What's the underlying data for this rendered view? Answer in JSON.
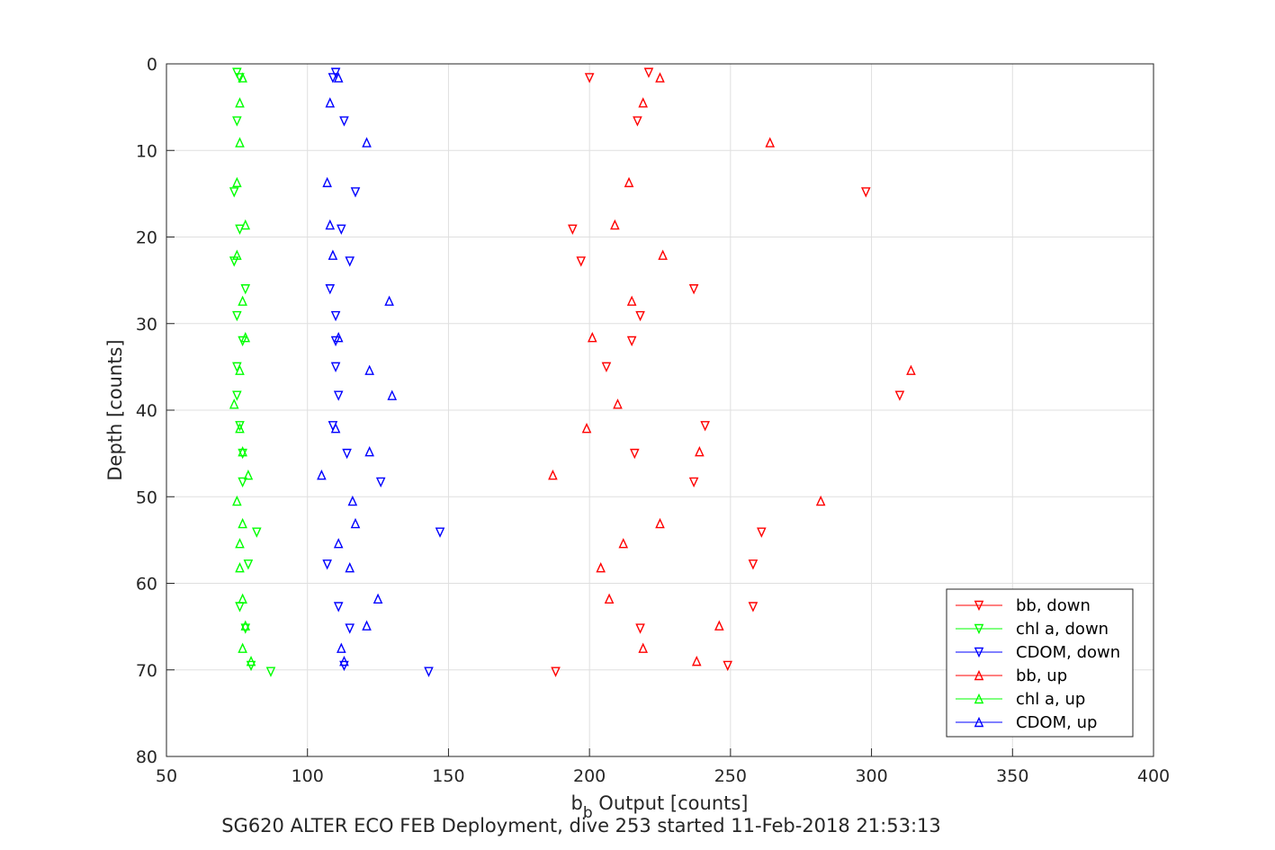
{
  "chart_data": {
    "type": "scatter",
    "title": "SG620 ALTER ECO FEB Deployment, dive 253 started 11-Feb-2018 21:53:13",
    "xlabel_main": "b",
    "xlabel_sub": "b",
    "xlabel_rest": " Output [counts]",
    "ylabel": "Depth [counts]",
    "xlim": [
      50,
      400
    ],
    "ylim": [
      0,
      80
    ],
    "y_reversed": true,
    "grid": true,
    "legend_position": "bottom-right",
    "xticks": [
      "50",
      "100",
      "150",
      "200",
      "250",
      "300",
      "350",
      "400"
    ],
    "yticks": [
      "0",
      "10",
      "20",
      "30",
      "40",
      "50",
      "60",
      "70",
      "80"
    ],
    "series": [
      {
        "name": "bb, down",
        "color": "#ff0000",
        "marker": "triangle-down",
        "points": [
          [
            221,
            1
          ],
          [
            200,
            1.6
          ],
          [
            217,
            6.6
          ],
          [
            298,
            14.8
          ],
          [
            194,
            19.1
          ],
          [
            197,
            22.8
          ],
          [
            237,
            26
          ],
          [
            218,
            29.1
          ],
          [
            215,
            32
          ],
          [
            206,
            35
          ],
          [
            310,
            38.3
          ],
          [
            241,
            41.8
          ],
          [
            216,
            45
          ],
          [
            237,
            48.3
          ],
          [
            261,
            54.1
          ],
          [
            258,
            57.8
          ],
          [
            258,
            62.7
          ],
          [
            218,
            65.2
          ],
          [
            249,
            69.5
          ],
          [
            188,
            70.2
          ]
        ]
      },
      {
        "name": "chl a, down",
        "color": "#00ff00",
        "marker": "triangle-down",
        "points": [
          [
            75,
            1
          ],
          [
            76,
            1.6
          ],
          [
            75,
            6.6
          ],
          [
            74,
            14.8
          ],
          [
            76,
            19.1
          ],
          [
            74,
            22.8
          ],
          [
            78,
            26
          ],
          [
            75,
            29.1
          ],
          [
            77,
            32
          ],
          [
            75,
            35
          ],
          [
            75,
            38.3
          ],
          [
            76,
            41.8
          ],
          [
            77,
            45
          ],
          [
            77,
            48.3
          ],
          [
            82,
            54.1
          ],
          [
            79,
            57.8
          ],
          [
            76,
            62.7
          ],
          [
            78,
            65.2
          ],
          [
            80,
            69.5
          ],
          [
            87,
            70.2
          ]
        ]
      },
      {
        "name": "CDOM, down",
        "color": "#0000ff",
        "marker": "triangle-down",
        "points": [
          [
            110,
            1
          ],
          [
            109,
            1.6
          ],
          [
            113,
            6.6
          ],
          [
            117,
            14.8
          ],
          [
            112,
            19.1
          ],
          [
            115,
            22.8
          ],
          [
            108,
            26
          ],
          [
            110,
            29.1
          ],
          [
            110,
            32
          ],
          [
            110,
            35
          ],
          [
            111,
            38.3
          ],
          [
            109,
            41.8
          ],
          [
            114,
            45
          ],
          [
            126,
            48.3
          ],
          [
            147,
            54.1
          ],
          [
            107,
            57.8
          ],
          [
            111,
            62.7
          ],
          [
            115,
            65.2
          ],
          [
            113,
            69.5
          ],
          [
            143,
            70.2
          ]
        ]
      },
      {
        "name": "bb, up",
        "color": "#ff0000",
        "marker": "triangle-up",
        "points": [
          [
            225,
            1.6
          ],
          [
            219,
            4.5
          ],
          [
            264,
            9.1
          ],
          [
            214,
            13.7
          ],
          [
            209,
            18.6
          ],
          [
            226,
            22.1
          ],
          [
            215,
            27.4
          ],
          [
            201,
            31.6
          ],
          [
            314,
            35.4
          ],
          [
            210,
            39.3
          ],
          [
            199,
            42.1
          ],
          [
            239,
            44.8
          ],
          [
            187,
            47.5
          ],
          [
            282,
            50.5
          ],
          [
            225,
            53.1
          ],
          [
            212,
            55.4
          ],
          [
            204,
            58.2
          ],
          [
            207,
            61.8
          ],
          [
            246,
            64.9
          ],
          [
            219,
            67.5
          ],
          [
            238,
            69
          ]
        ]
      },
      {
        "name": "chl a, up",
        "color": "#00ff00",
        "marker": "triangle-up",
        "points": [
          [
            77,
            1.6
          ],
          [
            76,
            4.5
          ],
          [
            76,
            9.1
          ],
          [
            75,
            13.7
          ],
          [
            78,
            18.6
          ],
          [
            75,
            22.1
          ],
          [
            77,
            27.4
          ],
          [
            78,
            31.6
          ],
          [
            76,
            35.4
          ],
          [
            74,
            39.3
          ],
          [
            76,
            42.1
          ],
          [
            77,
            44.8
          ],
          [
            79,
            47.5
          ],
          [
            75,
            50.5
          ],
          [
            77,
            53.1
          ],
          [
            76,
            55.4
          ],
          [
            76,
            58.2
          ],
          [
            77,
            61.8
          ],
          [
            78,
            64.9
          ],
          [
            77,
            67.5
          ],
          [
            80,
            69
          ]
        ]
      },
      {
        "name": "CDOM, up",
        "color": "#0000ff",
        "marker": "triangle-up",
        "points": [
          [
            111,
            1.6
          ],
          [
            108,
            4.5
          ],
          [
            121,
            9.1
          ],
          [
            107,
            13.7
          ],
          [
            108,
            18.6
          ],
          [
            109,
            22.1
          ],
          [
            129,
            27.4
          ],
          [
            111,
            31.6
          ],
          [
            122,
            35.4
          ],
          [
            130,
            38.3
          ],
          [
            110,
            42.1
          ],
          [
            122,
            44.8
          ],
          [
            105,
            47.5
          ],
          [
            116,
            50.5
          ],
          [
            117,
            53.1
          ],
          [
            111,
            55.4
          ],
          [
            115,
            58.2
          ],
          [
            125,
            61.8
          ],
          [
            121,
            64.9
          ],
          [
            112,
            67.5
          ],
          [
            113,
            69
          ]
        ]
      }
    ]
  }
}
